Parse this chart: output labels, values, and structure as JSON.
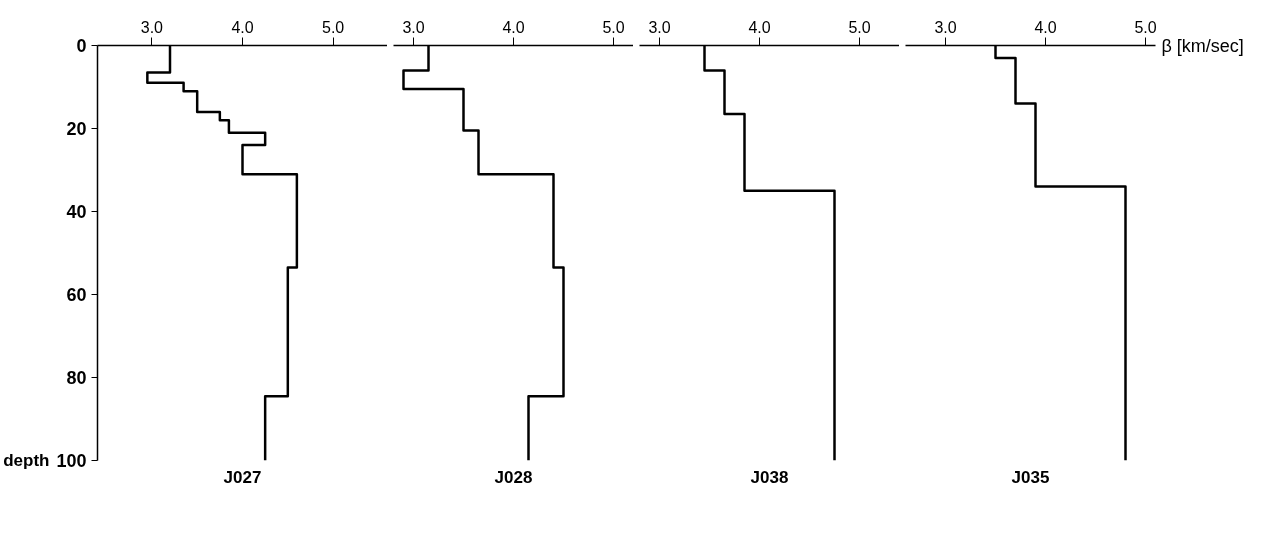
{
  "chart_data": [
    {
      "type": "line",
      "title": "J027",
      "ylabel": "depth",
      "xlim": [
        2.4,
        5.6
      ],
      "xticks": [
        {
          "value": 3,
          "label": "3.0"
        },
        {
          "value": 4,
          "label": "4.0"
        },
        {
          "value": 5,
          "label": "5.0"
        }
      ],
      "ylim": [
        100,
        0
      ],
      "yticks": [
        0,
        20,
        40,
        60,
        80,
        100
      ],
      "series": [
        {
          "color": "#000000",
          "x": [
            3.2,
            3.2,
            2.95,
            2.95,
            3.35,
            3.35,
            3.5,
            3.5,
            3.75,
            3.75,
            3.85,
            3.85,
            4.25,
            4.25,
            4.0,
            4.0,
            4.6,
            4.6,
            4.5,
            4.5,
            4.25,
            4.25
          ],
          "values": [
            0,
            6.5,
            6.5,
            9,
            9,
            11,
            11,
            16,
            16,
            18,
            18,
            21,
            21,
            24,
            24,
            31,
            31,
            53.5,
            53.5,
            84.5,
            84.5,
            100
          ]
        }
      ]
    },
    {
      "type": "line",
      "title": "J028",
      "tick_labels": "x",
      "xlim": [
        2.8,
        5.2
      ],
      "xticks": [
        {
          "value": 3,
          "label": "3.0"
        },
        {
          "value": 4,
          "label": "4.0"
        },
        {
          "value": 5,
          "label": "5.0"
        }
      ],
      "ylim": [
        100,
        0
      ],
      "yticks": [
        0,
        20,
        40,
        60,
        80,
        100
      ],
      "series": [
        {
          "color": "#000000",
          "x": [
            3.15,
            3.15,
            2.9,
            2.9,
            3.5,
            3.5,
            3.65,
            3.65,
            4.4,
            4.4,
            4.5,
            4.5,
            4.15,
            4.15
          ],
          "values": [
            0,
            6,
            6,
            10.5,
            10.5,
            20.5,
            20.5,
            31,
            31,
            53.5,
            53.5,
            84.5,
            84.5,
            100
          ]
        }
      ]
    },
    {
      "type": "line",
      "title": "J038",
      "tick_labels": "x",
      "xlim": [
        2.8,
        5.4
      ],
      "xticks": [
        {
          "value": 3,
          "label": "3.0"
        },
        {
          "value": 4,
          "label": "4.0"
        },
        {
          "value": 5,
          "label": "5.0"
        }
      ],
      "ylim": [
        100,
        0
      ],
      "yticks": [
        0,
        20,
        40,
        60,
        80,
        100
      ],
      "series": [
        {
          "color": "#000000",
          "x": [
            3.45,
            3.45,
            3.65,
            3.65,
            3.85,
            3.85,
            4.75,
            4.75
          ],
          "values": [
            0,
            6,
            6,
            16.5,
            16.5,
            35,
            35,
            100
          ]
        }
      ]
    },
    {
      "type": "line",
      "title": "J035",
      "xlabel": "β [km/sec]",
      "tick_labels": "x",
      "xlim": [
        2.6,
        5.1
      ],
      "xticks": [
        {
          "value": 3,
          "label": "3.0"
        },
        {
          "value": 4,
          "label": "4.0"
        },
        {
          "value": 5,
          "label": "5.0"
        }
      ],
      "ylim": [
        100,
        0
      ],
      "yticks": [
        0,
        20,
        40,
        60,
        80,
        100
      ],
      "series": [
        {
          "color": "#000000",
          "x": [
            3.5,
            3.5,
            3.7,
            3.7,
            3.9,
            3.9,
            4.8,
            4.8
          ],
          "values": [
            0,
            3,
            3,
            14,
            14,
            34,
            34,
            100
          ]
        }
      ]
    }
  ]
}
